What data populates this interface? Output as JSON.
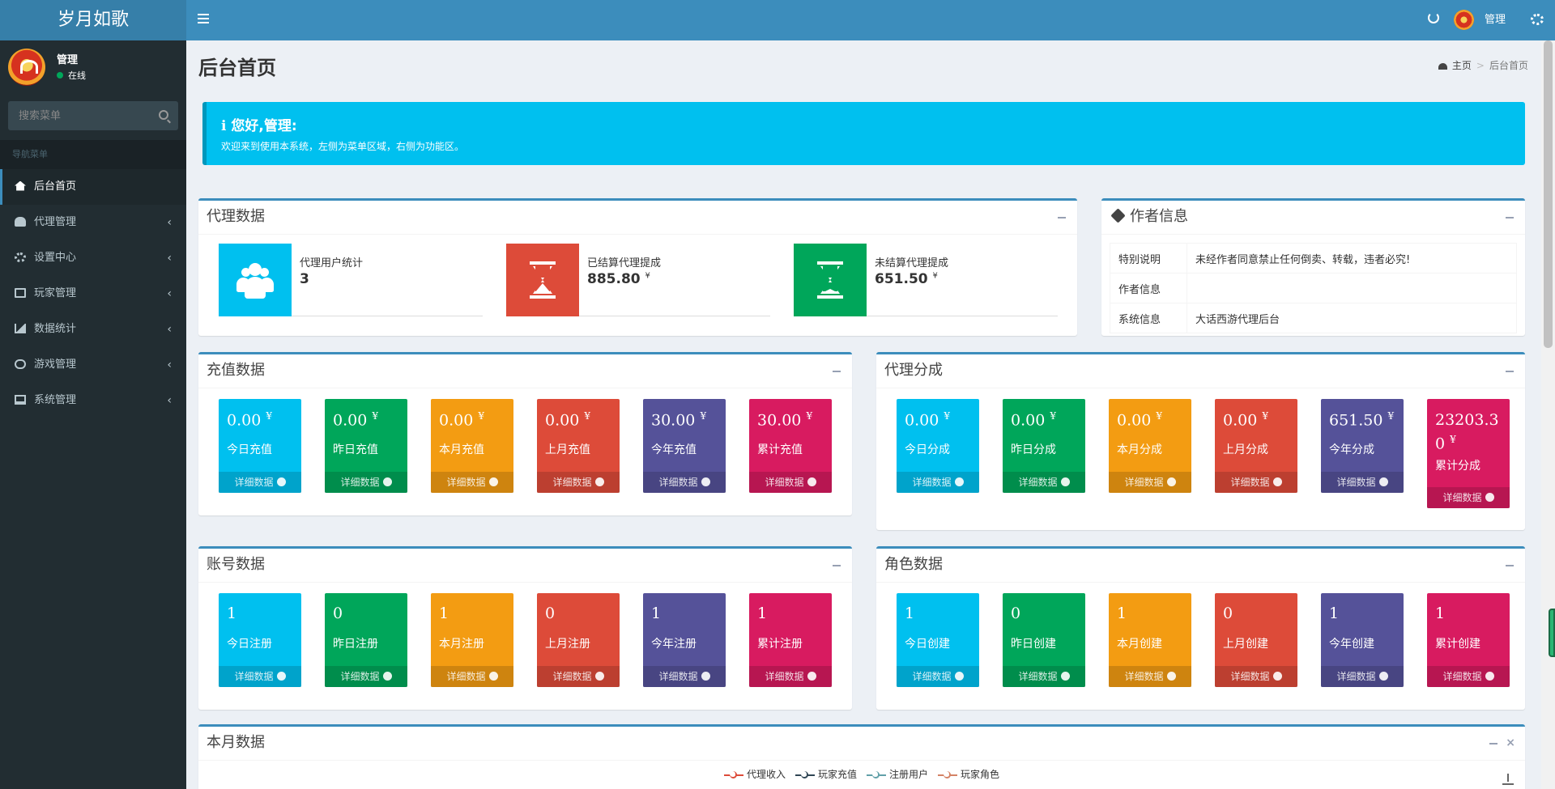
{
  "app": {
    "title": "岁月如歌"
  },
  "user": {
    "name": "管理",
    "status": "在线"
  },
  "search": {
    "placeholder": "搜索菜单"
  },
  "nav": {
    "header": "导航菜单",
    "items": [
      {
        "label": "后台首页",
        "icon": "home-icon",
        "active": true
      },
      {
        "label": "代理管理",
        "icon": "users-icon"
      },
      {
        "label": "设置中心",
        "icon": "gears-icon"
      },
      {
        "label": "玩家管理",
        "icon": "book-icon"
      },
      {
        "label": "数据统计",
        "icon": "area-chart-icon"
      },
      {
        "label": "游戏管理",
        "icon": "gamepad-icon"
      },
      {
        "label": "系统管理",
        "icon": "desktop-icon"
      }
    ]
  },
  "topbar": {
    "user": "管理"
  },
  "page": {
    "title": "后台首页"
  },
  "breadcrumb": {
    "home": "主页",
    "current": "后台首页"
  },
  "callout": {
    "title": "ℹ 您好,管理:",
    "text": "欢迎来到使用本系统，左侧为菜单区域，右侧为功能区。"
  },
  "agent_box": {
    "title": "代理数据",
    "items": [
      {
        "label": "代理用户统计",
        "value": "3",
        "unit": "",
        "color": "#00c0ef"
      },
      {
        "label": "已结算代理提成",
        "value": "885.80",
        "unit": "¥",
        "color": "#dd4b39"
      },
      {
        "label": "未结算代理提成",
        "value": "651.50",
        "unit": "¥",
        "color": "#00a65a"
      }
    ]
  },
  "author_box": {
    "title": "作者信息",
    "rows": [
      {
        "key": "特别说明",
        "value": "未经作者同意禁止任何倒卖、转载，违者必究!"
      },
      {
        "key": "作者信息",
        "value": ""
      },
      {
        "key": "系统信息",
        "value": "大话西游代理后台"
      }
    ]
  },
  "detail_label": "详细数据",
  "recharge_box": {
    "title": "充值数据",
    "items": [
      {
        "value": "0.00",
        "unit": "¥",
        "label": "今日充值"
      },
      {
        "value": "0.00",
        "unit": "¥",
        "label": "昨日充值"
      },
      {
        "value": "0.00",
        "unit": "¥",
        "label": "本月充值"
      },
      {
        "value": "0.00",
        "unit": "¥",
        "label": "上月充值"
      },
      {
        "value": "30.00",
        "unit": "¥",
        "label": "今年充值"
      },
      {
        "value": "30.00",
        "unit": "¥",
        "label": "累计充值"
      }
    ]
  },
  "share_box": {
    "title": "代理分成",
    "items": [
      {
        "value": "0.00",
        "unit": "¥",
        "label": "今日分成"
      },
      {
        "value": "0.00",
        "unit": "¥",
        "label": "昨日分成"
      },
      {
        "value": "0.00",
        "unit": "¥",
        "label": "本月分成"
      },
      {
        "value": "0.00",
        "unit": "¥",
        "label": "上月分成"
      },
      {
        "value": "651.50",
        "unit": "¥",
        "label": "今年分成"
      },
      {
        "value": "23203.30",
        "unit": "¥",
        "label": "累计分成"
      }
    ]
  },
  "account_box": {
    "title": "账号数据",
    "items": [
      {
        "value": "1",
        "label": "今日注册"
      },
      {
        "value": "0",
        "label": "昨日注册"
      },
      {
        "value": "1",
        "label": "本月注册"
      },
      {
        "value": "0",
        "label": "上月注册"
      },
      {
        "value": "1",
        "label": "今年注册"
      },
      {
        "value": "1",
        "label": "累计注册"
      }
    ]
  },
  "role_box": {
    "title": "角色数据",
    "items": [
      {
        "value": "1",
        "label": "今日创建"
      },
      {
        "value": "0",
        "label": "昨日创建"
      },
      {
        "value": "1",
        "label": "本月创建"
      },
      {
        "value": "0",
        "label": "上月创建"
      },
      {
        "value": "1",
        "label": "今年创建"
      },
      {
        "value": "1",
        "label": "累计创建"
      }
    ]
  },
  "tile_colors": [
    "#00c0ef",
    "#00a65a",
    "#f39c12",
    "#dd4b39",
    "#555299",
    "#d81b60"
  ],
  "month_box": {
    "title": "本月数据",
    "legend": [
      {
        "name": "代理收入",
        "color": "#dd4b39"
      },
      {
        "name": "玩家充值",
        "color": "#2f4554"
      },
      {
        "name": "注册用户",
        "color": "#61a0a8"
      },
      {
        "name": "玩家角色",
        "color": "#d48265"
      }
    ]
  }
}
